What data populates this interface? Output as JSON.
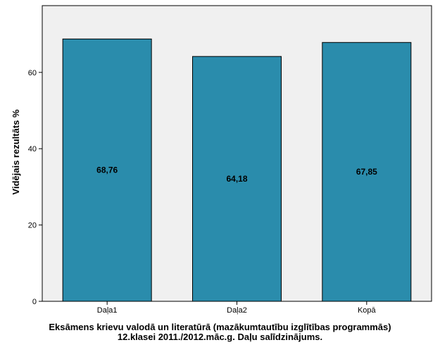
{
  "chart_data": {
    "type": "bar",
    "categories": [
      "Daļa1",
      "Daļa2",
      "Kopā"
    ],
    "values": [
      68.76,
      64.18,
      67.85
    ],
    "data_labels": [
      "68,76",
      "64,18",
      "67,85"
    ],
    "ylabel": "Vidējais rezultāts %",
    "xlabel": "",
    "ylim": [
      0,
      77.5
    ],
    "yticks": [
      "0",
      "20",
      "40",
      "60"
    ],
    "grid": false,
    "legend": "none",
    "caption_lines": [
      "Eksāmens krievu valodā un literatūrā (mazākumtautību izglītības programmās)",
      "12.klasei 2011./2012.māc.g. Daļu salīdzinājums."
    ],
    "colors": {
      "bar": "#2a8cac",
      "bar_edge": "#000000",
      "plot_background": "#f0f0f0"
    }
  }
}
